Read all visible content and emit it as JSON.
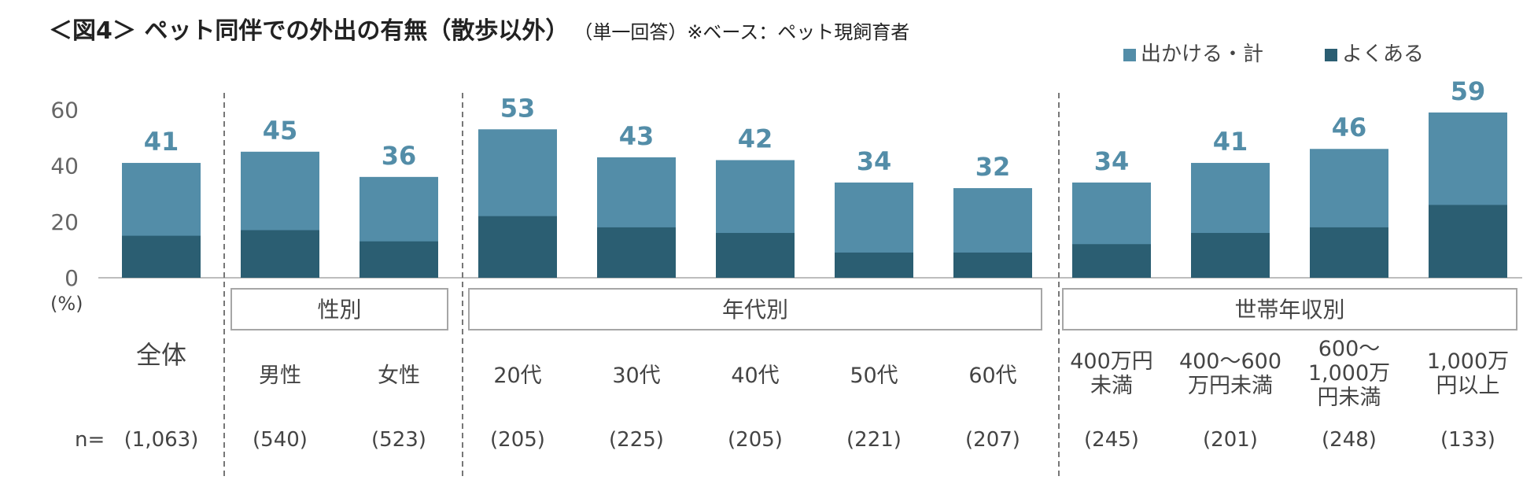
{
  "title": "＜図4＞ ペット同伴での外出の有無（散歩以外）",
  "subtitle": "（単一回答）※ベース：ペット現飼育者",
  "legend": [
    {
      "name": "出かける・計",
      "color": "#538DA8"
    },
    {
      "name": "よくある",
      "color": "#2B5E72"
    }
  ],
  "chart_data": {
    "type": "bar",
    "stacked": "overlay",
    "ylabel": "(%)",
    "ylim": [
      0,
      60
    ],
    "yticks": [
      "0",
      "20",
      "40",
      "60"
    ],
    "grid": false,
    "legend_position": "top-right",
    "n_prefix": "n=",
    "categories": [
      [
        "全体"
      ],
      [
        "男性"
      ],
      [
        "女性"
      ],
      [
        "20代"
      ],
      [
        "30代"
      ],
      [
        "40代"
      ],
      [
        "50代"
      ],
      [
        "60代"
      ],
      [
        "400万円",
        "未満"
      ],
      [
        "400～600",
        "万円未満"
      ],
      [
        "600～",
        "1,000万",
        "円未満"
      ],
      [
        "1,000万",
        "円以上"
      ]
    ],
    "n_labels": [
      "(1,063)",
      "(540)",
      "(523)",
      "(205)",
      "(225)",
      "(205)",
      "(221)",
      "(207)",
      "(245)",
      "(201)",
      "(248)",
      "(133)"
    ],
    "groups": [
      {
        "label": "性別",
        "start": 1,
        "end": 2
      },
      {
        "label": "年代別",
        "start": 3,
        "end": 7
      },
      {
        "label": "世帯年収別",
        "start": 8,
        "end": 11
      }
    ],
    "series": [
      {
        "name": "出かける・計",
        "values": [
          41,
          45,
          36,
          53,
          43,
          42,
          34,
          32,
          34,
          41,
          46,
          59
        ],
        "labels": [
          "41",
          "45",
          "36",
          "53",
          "43",
          "42",
          "34",
          "32",
          "34",
          "41",
          "46",
          "59"
        ]
      },
      {
        "name": "よくある",
        "values": [
          15,
          17,
          13,
          22,
          18,
          16,
          9,
          9,
          12,
          16,
          18,
          26
        ]
      }
    ]
  }
}
